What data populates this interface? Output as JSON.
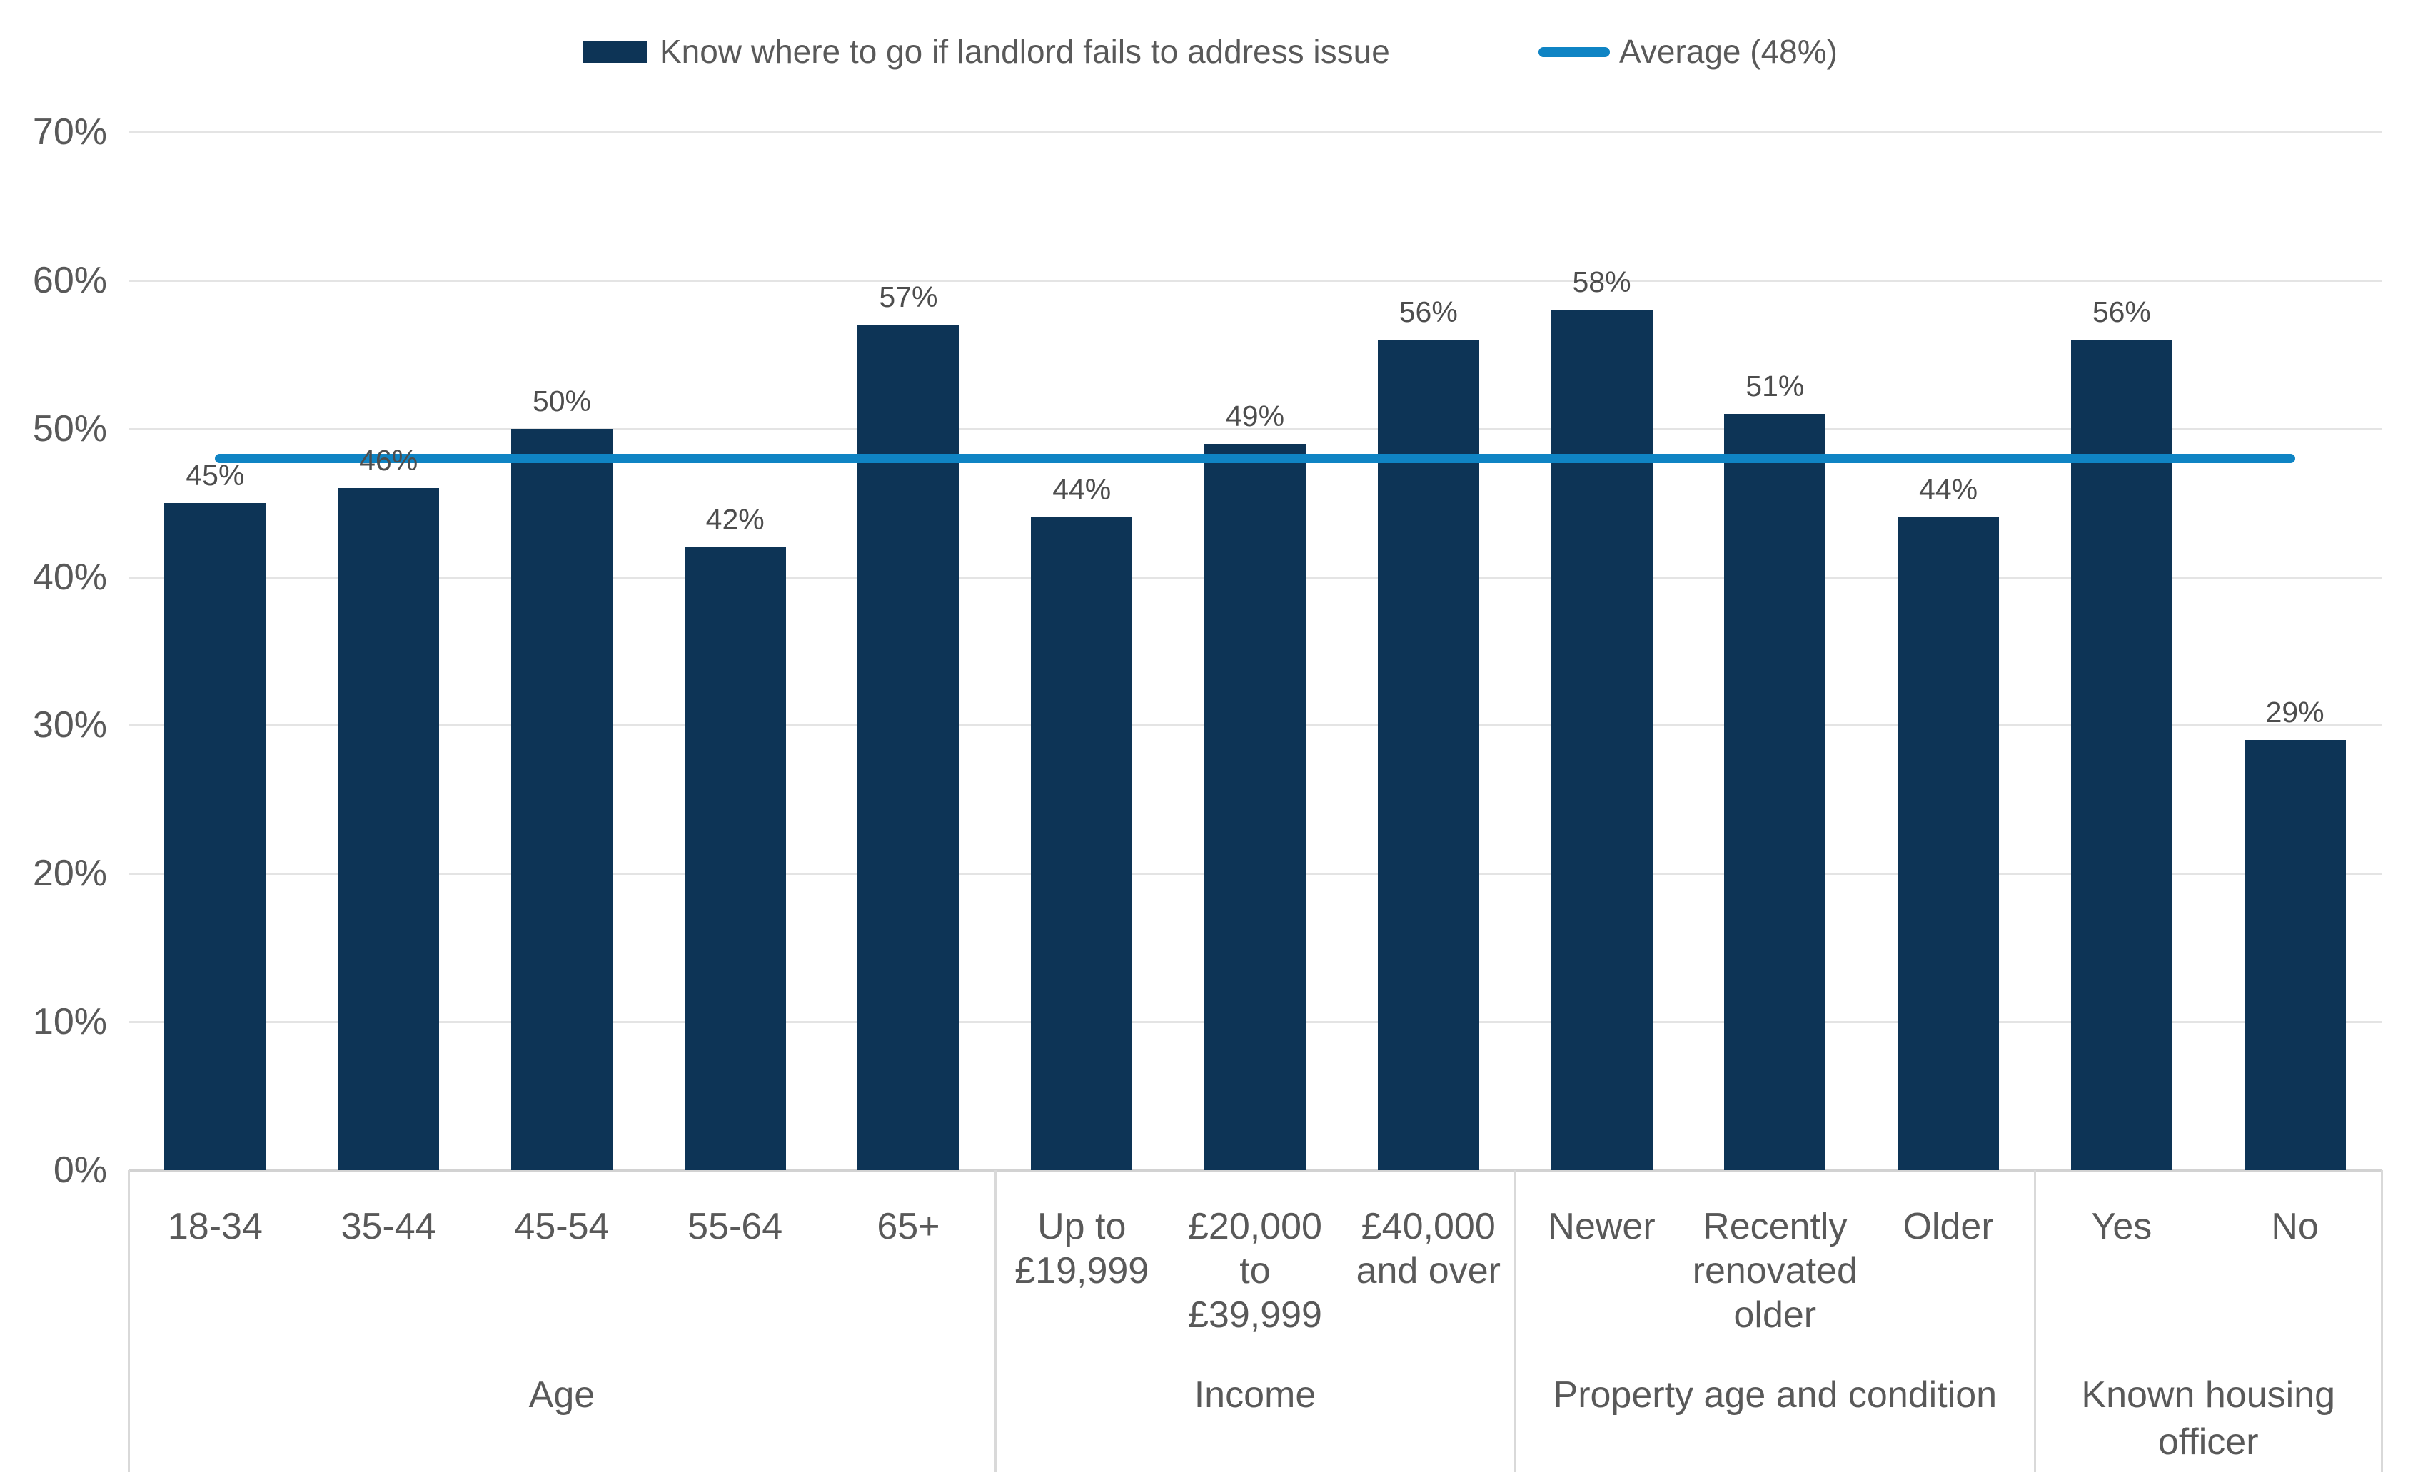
{
  "legend": {
    "series_swatch": "navy-rectangle",
    "line_swatch": "blue-rounded-line"
  },
  "chart_data": {
    "type": "bar",
    "title": "",
    "series_label": "Know where to go if landlord fails to address issue",
    "unit": "%",
    "bar_color": "#0D3456",
    "grid_color": "#E4E4E4",
    "axis_color": "#D2D2D2",
    "divider_color": "#D9D9D9",
    "tick_text_color": "#595959",
    "value_label_color": "#4D4D4D",
    "y_axis": {
      "min": 0,
      "max": 70,
      "step": 10,
      "tick_suffix": "%",
      "grid": true
    },
    "average_line": {
      "label": "Average (48%)",
      "value": 48,
      "color": "#0F84C4"
    },
    "legend_position": "top",
    "groups": [
      {
        "label": "Age",
        "label_lines": [
          "Age"
        ],
        "categories": [
          {
            "label": "18-34",
            "lines": [
              "18-34"
            ],
            "value": 45,
            "value_label": "45%"
          },
          {
            "label": "35-44",
            "lines": [
              "35-44"
            ],
            "value": 46,
            "value_label": "46%"
          },
          {
            "label": "45-54",
            "lines": [
              "45-54"
            ],
            "value": 50,
            "value_label": "50%"
          },
          {
            "label": "55-64",
            "lines": [
              "55-64"
            ],
            "value": 42,
            "value_label": "42%"
          },
          {
            "label": "65+",
            "lines": [
              "65+"
            ],
            "value": 57,
            "value_label": "57%"
          }
        ]
      },
      {
        "label": "Income",
        "label_lines": [
          "Income"
        ],
        "categories": [
          {
            "label": "Up to £19,999",
            "lines": [
              "Up to",
              "£19,999"
            ],
            "value": 44,
            "value_label": "44%"
          },
          {
            "label": "£20,000 to £39,999",
            "lines": [
              "£20,000 to",
              "£39,999"
            ],
            "value": 49,
            "value_label": "49%"
          },
          {
            "label": "£40,000 and over",
            "lines": [
              "£40,000",
              "and over"
            ],
            "value": 56,
            "value_label": "56%"
          }
        ]
      },
      {
        "label": "Property age and condition",
        "label_lines": [
          "Property age and condition"
        ],
        "categories": [
          {
            "label": "Newer",
            "lines": [
              "Newer"
            ],
            "value": 58,
            "value_label": "58%"
          },
          {
            "label": "Recently renovated older",
            "lines": [
              "Recently",
              "renovated",
              "older"
            ],
            "value": 51,
            "value_label": "51%"
          },
          {
            "label": "Older",
            "lines": [
              "Older"
            ],
            "value": 44,
            "value_label": "44%"
          }
        ]
      },
      {
        "label": "Known housing officer",
        "label_lines": [
          "Known housing",
          "officer"
        ],
        "categories": [
          {
            "label": "Yes",
            "lines": [
              "Yes"
            ],
            "value": 56,
            "value_label": "56%"
          },
          {
            "label": "No",
            "lines": [
              "No"
            ],
            "value": 29,
            "value_label": "29%"
          }
        ]
      }
    ]
  }
}
